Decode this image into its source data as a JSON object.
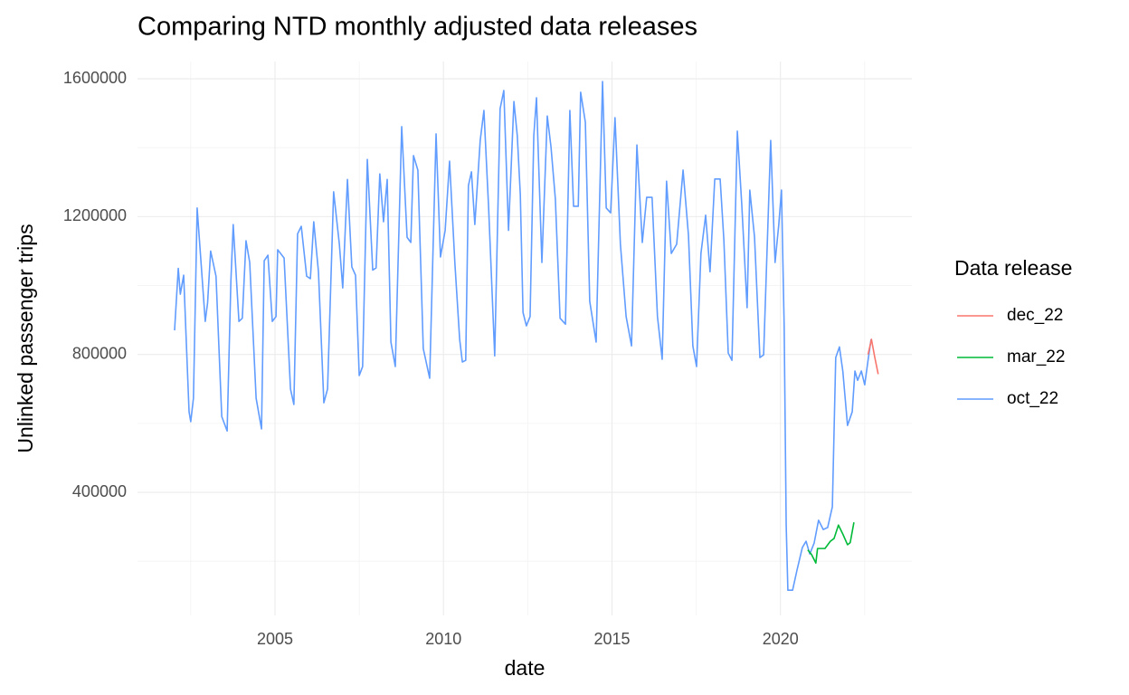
{
  "chart_data": {
    "type": "line",
    "title": "Comparing NTD monthly adjusted data releases",
    "x_label": "date",
    "y_label": "Unlinked passenger trips",
    "legend_title": "Data release",
    "legend_position": "right",
    "grid": true,
    "xlim": [
      2000.92,
      2023.9
    ],
    "xticks": [
      2005,
      2010,
      2015,
      2020
    ],
    "x_minor_ticks": [
      2002.5,
      2007.5,
      2012.5,
      2017.5,
      2022.5
    ],
    "ylim": [
      43000,
      1650000
    ],
    "yticks": [
      400000,
      800000,
      1200000,
      1600000
    ],
    "y_minor_ticks": [
      200000,
      600000,
      1000000,
      1400000
    ],
    "series": [
      {
        "name": "dec_22",
        "color": "#F8766D",
        "x": [
          2022.6,
          2022.7,
          2022.8,
          2022.9
        ],
        "values": [
          800000,
          844000,
          791000,
          743000
        ]
      },
      {
        "name": "mar_22",
        "color": "#00BA38",
        "x": [
          2020.81,
          2020.92,
          2021.05,
          2021.1,
          2021.32,
          2021.48,
          2021.59,
          2021.72,
          2021.85,
          2021.99,
          2022.07,
          2022.18
        ],
        "values": [
          233000,
          220000,
          195000,
          237000,
          237000,
          258000,
          266000,
          305000,
          279000,
          248000,
          254000,
          313000
        ]
      },
      {
        "name": "oct_22",
        "color": "#619CFF",
        "x": [
          2002.02,
          2002.13,
          2002.19,
          2002.29,
          2002.45,
          2002.5,
          2002.58,
          2002.69,
          2002.93,
          2003.0,
          2003.09,
          2003.25,
          2003.42,
          2003.58,
          2003.69,
          2003.76,
          2003.93,
          2004.03,
          2004.14,
          2004.25,
          2004.44,
          2004.6,
          2004.68,
          2004.79,
          2004.92,
          2005.03,
          2005.08,
          2005.27,
          2005.46,
          2005.56,
          2005.67,
          2005.78,
          2005.94,
          2006.05,
          2006.15,
          2006.29,
          2006.45,
          2006.56,
          2006.74,
          2006.91,
          2007.01,
          2007.15,
          2007.28,
          2007.39,
          2007.5,
          2007.6,
          2007.74,
          2007.9,
          2008.0,
          2008.11,
          2008.22,
          2008.33,
          2008.44,
          2008.57,
          2008.76,
          2008.92,
          2009.03,
          2009.11,
          2009.24,
          2009.4,
          2009.59,
          2009.78,
          2009.91,
          2010.05,
          2010.18,
          2010.34,
          2010.48,
          2010.56,
          2010.66,
          2010.74,
          2010.83,
          2010.93,
          2011.09,
          2011.2,
          2011.34,
          2011.52,
          2011.68,
          2011.79,
          2011.93,
          2012.09,
          2012.19,
          2012.28,
          2012.36,
          2012.46,
          2012.57,
          2012.68,
          2012.76,
          2012.92,
          2013.08,
          2013.19,
          2013.32,
          2013.46,
          2013.62,
          2013.75,
          2013.86,
          2014.0,
          2014.07,
          2014.21,
          2014.34,
          2014.53,
          2014.72,
          2014.83,
          2014.96,
          2015.09,
          2015.25,
          2015.42,
          2015.58,
          2015.74,
          2015.9,
          2016.03,
          2016.19,
          2016.35,
          2016.49,
          2016.62,
          2016.76,
          2016.92,
          2017.11,
          2017.27,
          2017.4,
          2017.51,
          2017.64,
          2017.78,
          2017.91,
          2018.05,
          2018.21,
          2018.32,
          2018.45,
          2018.56,
          2018.72,
          2018.85,
          2019.01,
          2019.09,
          2019.23,
          2019.39,
          2019.5,
          2019.71,
          2019.84,
          2019.95,
          2020.03,
          2020.11,
          2020.17,
          2020.22,
          2020.36,
          2020.49,
          2020.65,
          2020.76,
          2020.87,
          2021.0,
          2021.13,
          2021.27,
          2021.4,
          2021.54,
          2021.64,
          2021.75,
          2021.85,
          2021.99,
          2022.13,
          2022.21,
          2022.29,
          2022.4,
          2022.5,
          2022.61,
          2022.69
        ],
        "values": [
          870000,
          1050000,
          975000,
          1030000,
          634000,
          605000,
          673000,
          1225000,
          896000,
          950000,
          1100000,
          1027000,
          620000,
          578000,
          1010000,
          1177000,
          896000,
          905000,
          1130000,
          1067000,
          673000,
          584000,
          1072000,
          1088000,
          896000,
          910000,
          1104000,
          1080000,
          700000,
          655000,
          1150000,
          1172000,
          1027000,
          1020000,
          1185000,
          1040000,
          660000,
          700000,
          1272000,
          1120000,
          993000,
          1308000,
          1054000,
          1030000,
          739000,
          765000,
          1366000,
          1045000,
          1051000,
          1324000,
          1185000,
          1308000,
          836000,
          765000,
          1461000,
          1140000,
          1125000,
          1377000,
          1335000,
          817000,
          731000,
          1440000,
          1083000,
          1160000,
          1361000,
          1062000,
          844000,
          778000,
          783000,
          1290000,
          1330000,
          1177000,
          1421000,
          1508000,
          1225000,
          796000,
          1513000,
          1566000,
          1160000,
          1534000,
          1435000,
          1264000,
          922000,
          883000,
          910000,
          1435000,
          1545000,
          1067000,
          1492000,
          1403000,
          1251000,
          905000,
          888000,
          1508000,
          1230000,
          1230000,
          1561000,
          1474000,
          954000,
          836000,
          1592000,
          1225000,
          1211000,
          1487000,
          1120000,
          910000,
          825000,
          1408000,
          1125000,
          1256000,
          1256000,
          910000,
          786000,
          1303000,
          1093000,
          1120000,
          1335000,
          1146000,
          825000,
          765000,
          1093000,
          1204000,
          1040000,
          1309000,
          1309000,
          1133000,
          804000,
          783000,
          1448000,
          1238000,
          936000,
          1277000,
          1141000,
          791000,
          799000,
          1421000,
          1067000,
          1177000,
          1277000,
          883000,
          305000,
          116000,
          116000,
          174000,
          240000,
          258000,
          221000,
          253000,
          319000,
          292000,
          298000,
          358000,
          791000,
          822000,
          752000,
          594000,
          634000,
          752000,
          725000,
          752000,
          712000,
          791000,
          844000
        ]
      }
    ]
  }
}
